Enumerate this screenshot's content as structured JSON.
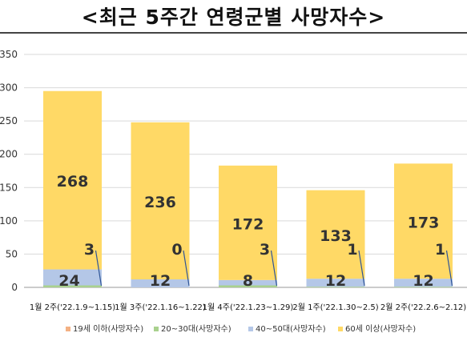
{
  "chart_data": {
    "type": "bar",
    "stacked": true,
    "title": "<최근 5주간 연령군별 사망자수>",
    "categories": [
      "1월 2주('22.1.9~1.15)",
      "1월 3주('22.1.16~1.22)",
      "1월 4주('22.1.23~1.29)",
      "2월 1주('22.1.30~2.5)",
      "2월 2주('22.2.6~2.12)"
    ],
    "series": [
      {
        "name": "19세 이하(사망자수)",
        "color": "#f4b183",
        "values": [
          0,
          0,
          0,
          0,
          0
        ]
      },
      {
        "name": "20~30대(사망자수)",
        "color": "#a9d18e",
        "values": [
          3,
          0,
          3,
          1,
          1
        ]
      },
      {
        "name": "40~50대(사망자수)",
        "color": "#b4c7e7",
        "values": [
          24,
          12,
          8,
          12,
          12
        ]
      },
      {
        "name": "60세 이상(사망자수)",
        "color": "#ffd966",
        "values": [
          268,
          236,
          172,
          133,
          173
        ]
      }
    ],
    "ylim": [
      0,
      350
    ],
    "yticks": [
      0,
      50,
      100,
      150,
      200,
      250,
      300,
      350
    ],
    "grid": true,
    "legend": "bottom"
  }
}
